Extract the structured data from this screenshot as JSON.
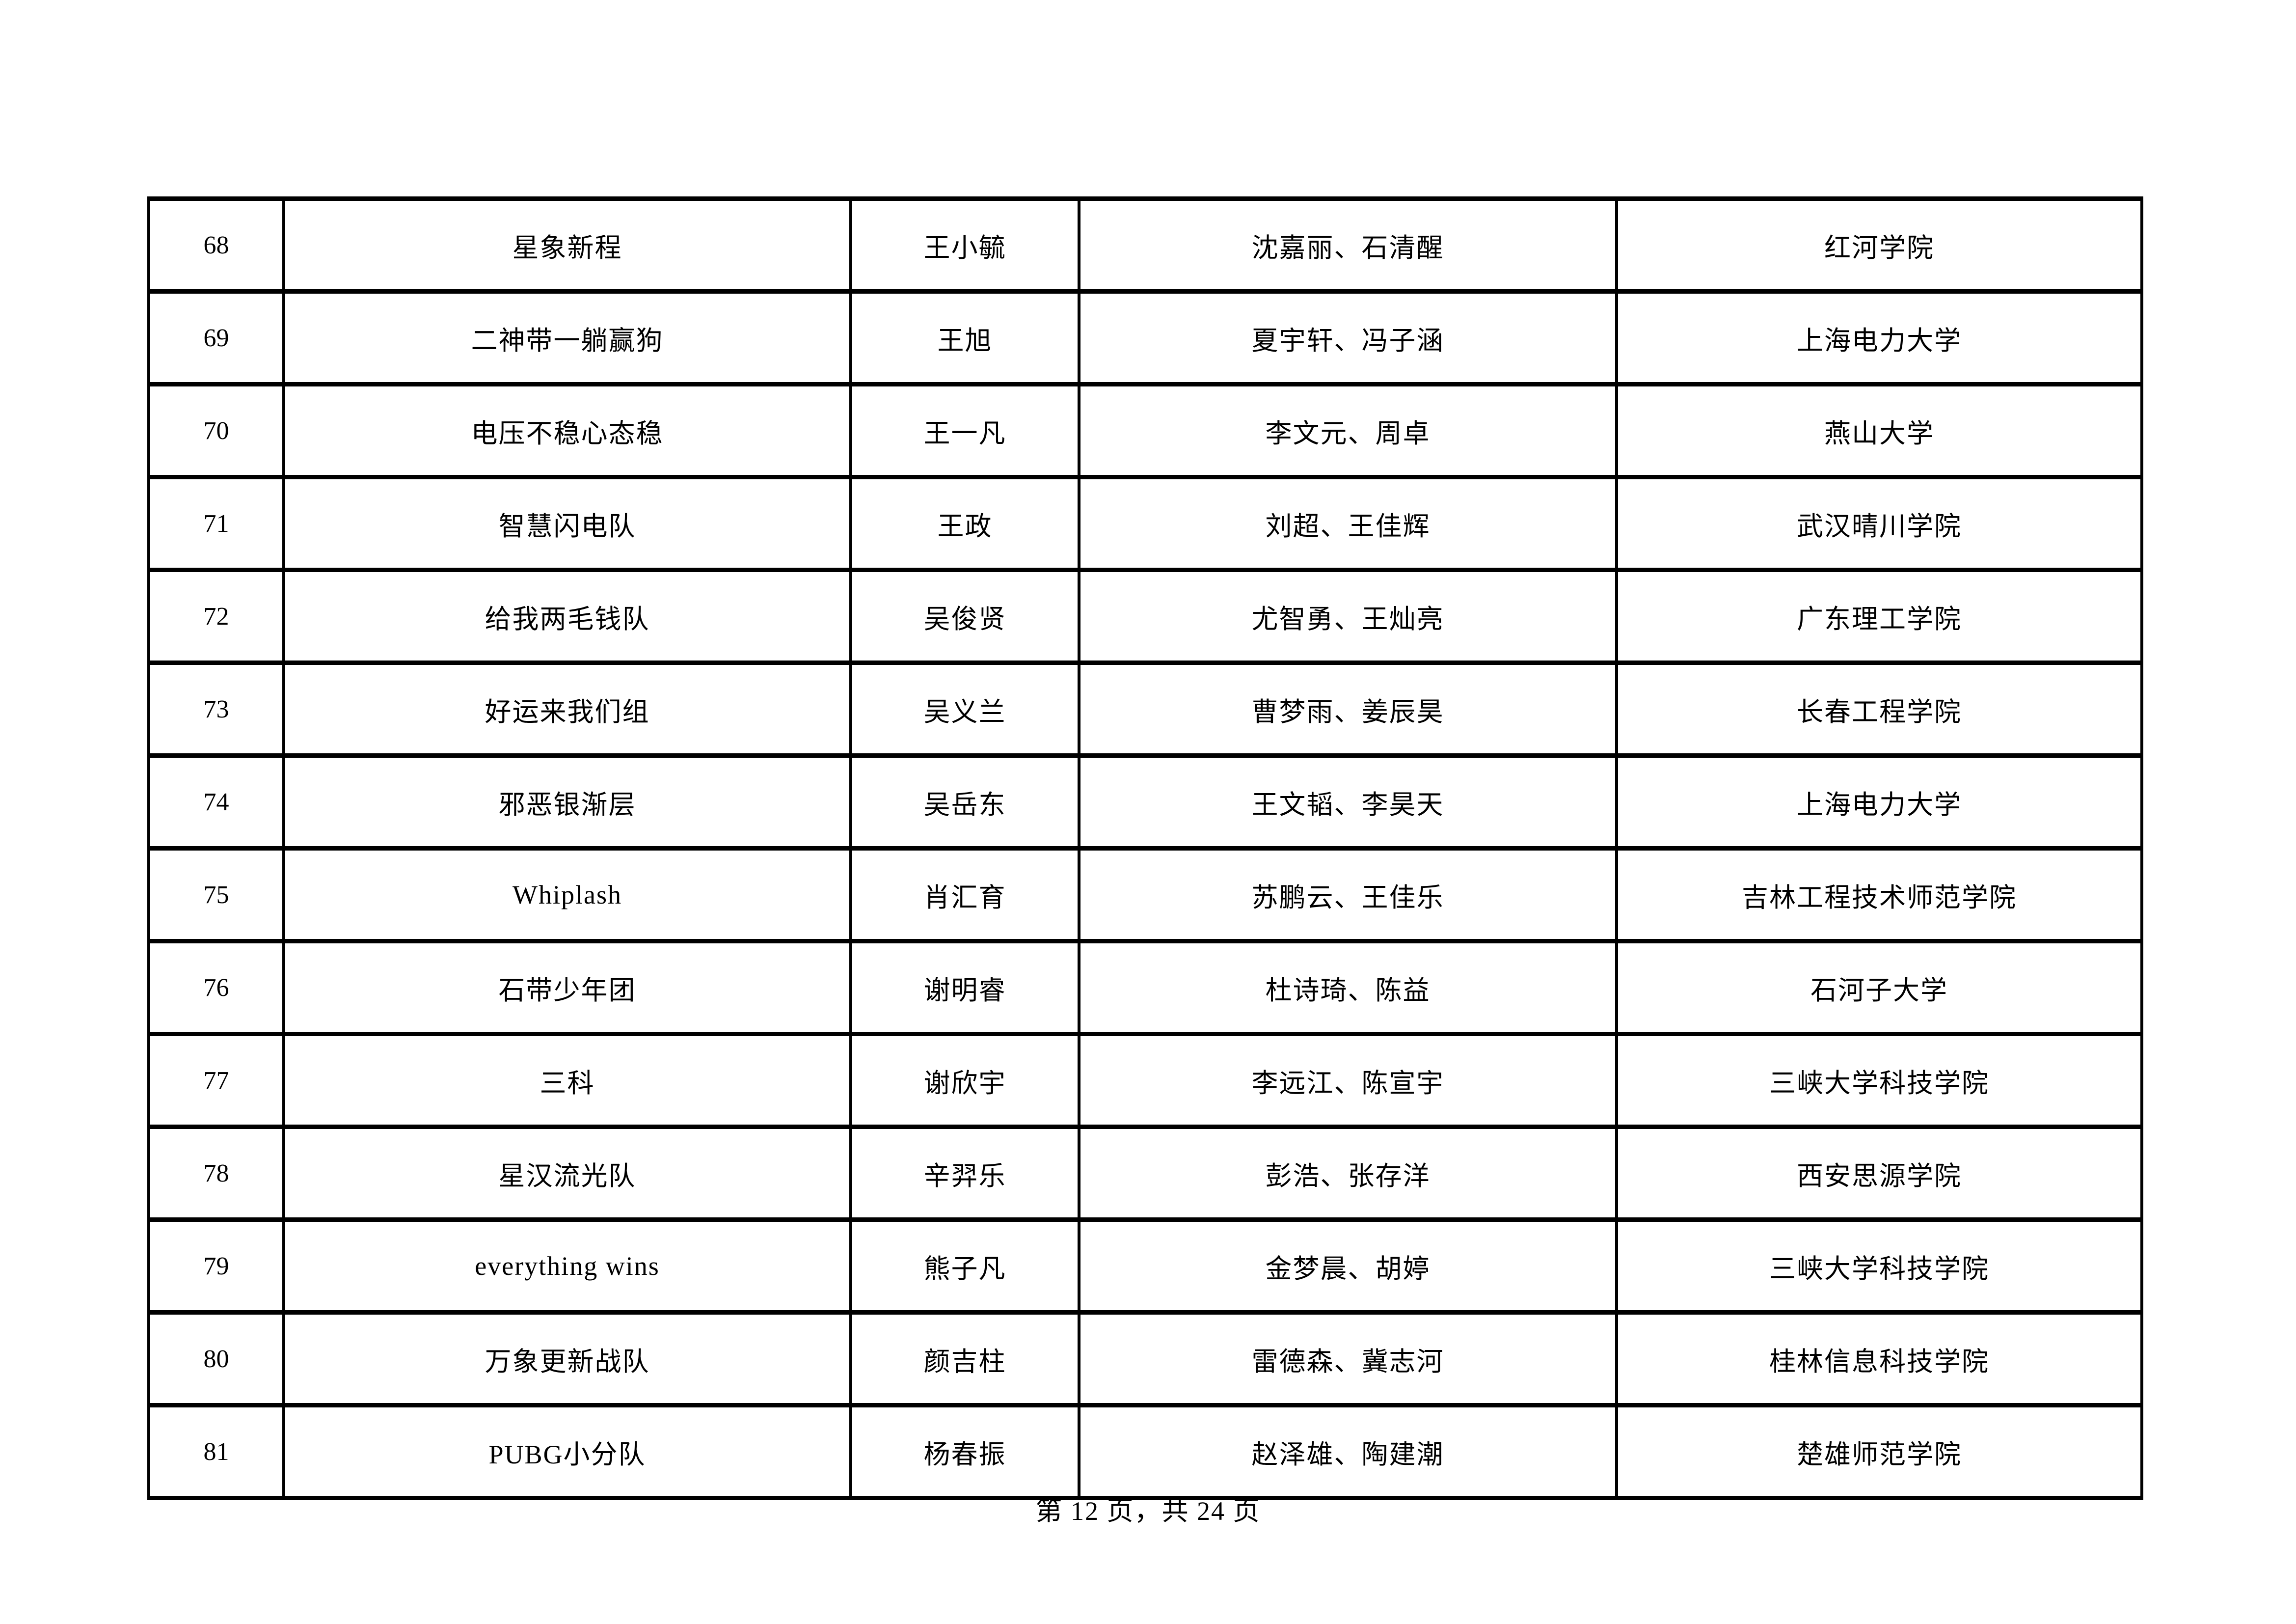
{
  "table": {
    "columns": [
      "no",
      "team",
      "leader",
      "members",
      "school"
    ],
    "rows": [
      {
        "no": "68",
        "team": "星象新程",
        "leader": "王小毓",
        "members": "沈嘉丽、石清醒",
        "school": "红河学院"
      },
      {
        "no": "69",
        "team": "二神带一躺赢狗",
        "leader": "王旭",
        "members": "夏宇轩、冯子涵",
        "school": "上海电力大学"
      },
      {
        "no": "70",
        "team": "电压不稳心态稳",
        "leader": "王一凡",
        "members": "李文元、周卓",
        "school": "燕山大学"
      },
      {
        "no": "71",
        "team": "智慧闪电队",
        "leader": "王政",
        "members": "刘超、王佳辉",
        "school": "武汉晴川学院"
      },
      {
        "no": "72",
        "team": "给我两毛钱队",
        "leader": "吴俊贤",
        "members": "尤智勇、王灿亮",
        "school": "广东理工学院"
      },
      {
        "no": "73",
        "team": "好运来我们组",
        "leader": "吴义兰",
        "members": "曹梦雨、姜辰昊",
        "school": "长春工程学院"
      },
      {
        "no": "74",
        "team": "邪恶银渐层",
        "leader": "吴岳东",
        "members": "王文韬、李昊天",
        "school": "上海电力大学"
      },
      {
        "no": "75",
        "team": "Whiplash",
        "leader": "肖汇育",
        "members": "苏鹏云、王佳乐",
        "school": "吉林工程技术师范学院"
      },
      {
        "no": "76",
        "team": "石带少年团",
        "leader": "谢明睿",
        "members": "杜诗琦、陈益",
        "school": "石河子大学"
      },
      {
        "no": "77",
        "team": "三科",
        "leader": "谢欣宇",
        "members": "李远江、陈宣宇",
        "school": "三峡大学科技学院"
      },
      {
        "no": "78",
        "team": "星汉流光队",
        "leader": "辛羿乐",
        "members": "彭浩、张存洋",
        "school": "西安思源学院"
      },
      {
        "no": "79",
        "team": "everything wins",
        "leader": "熊子凡",
        "members": "金梦晨、胡婷",
        "school": "三峡大学科技学院"
      },
      {
        "no": "80",
        "team": "万象更新战队",
        "leader": "颜吉柱",
        "members": "雷德森、冀志河",
        "school": "桂林信息科技学院"
      },
      {
        "no": "81",
        "team": "PUBG小分队",
        "leader": "杨春振",
        "members": "赵泽雄、陶建潮",
        "school": "楚雄师范学院"
      }
    ]
  },
  "footer": {
    "text": "第 12 页，共 24 页"
  },
  "colors": {
    "background": "#ffffff",
    "text": "#000000",
    "border": "#000000"
  }
}
